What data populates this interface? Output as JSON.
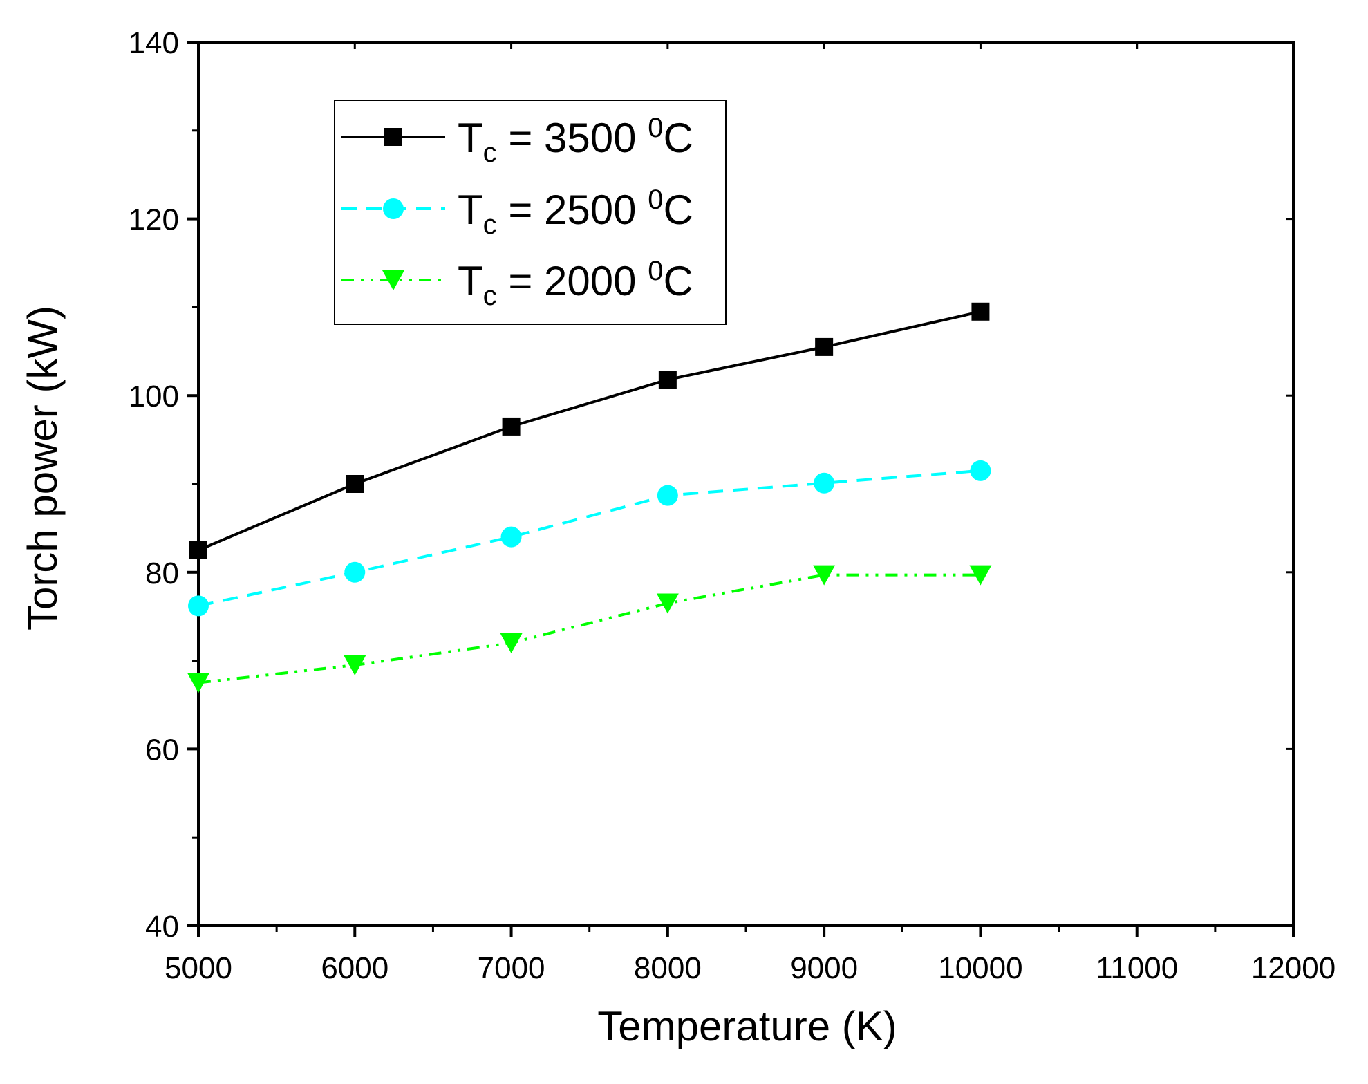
{
  "chart_data": {
    "type": "line",
    "title": "",
    "xlabel": "Temperature (K)",
    "ylabel": "Torch power (kW)",
    "xlim": [
      5000,
      12000
    ],
    "ylim": [
      40,
      140
    ],
    "xticks": [
      5000,
      6000,
      7000,
      8000,
      9000,
      10000,
      11000,
      12000
    ],
    "yticks": [
      40,
      60,
      80,
      100,
      120,
      140
    ],
    "xtick_labels": [
      "5000",
      "6000",
      "7000",
      "8000",
      "9000",
      "10000",
      "11000",
      "12000"
    ],
    "ytick_labels": [
      "40",
      "60",
      "80",
      "100",
      "120",
      "140"
    ],
    "grid": false,
    "legend_position": "top-left",
    "series": [
      {
        "name": "Tc = 3500 0C",
        "label_main": "T",
        "label_sub": "c",
        "label_mid": " = 3500 ",
        "label_sup": "0",
        "label_end": "C",
        "color": "#000000",
        "marker": "square",
        "dash": "solid",
        "x": [
          5000,
          6000,
          7000,
          8000,
          9000,
          10000
        ],
        "values": [
          82.5,
          90.0,
          96.5,
          101.8,
          105.5,
          109.5
        ]
      },
      {
        "name": "Tc = 2500 0C",
        "label_main": "T",
        "label_sub": "c",
        "label_mid": " = 2500 ",
        "label_sup": "0",
        "label_end": "C",
        "color": "#00FFFF",
        "marker": "circle",
        "dash": "dash",
        "x": [
          5000,
          6000,
          7000,
          8000,
          9000,
          10000
        ],
        "values": [
          76.2,
          80.0,
          84.0,
          88.7,
          90.1,
          91.5
        ]
      },
      {
        "name": "Tc = 2000 0C",
        "label_main": "T",
        "label_sub": "c",
        "label_mid": " = 2000 ",
        "label_sup": "0",
        "label_end": "C",
        "color": "#00FF00",
        "marker": "triangle-down",
        "dash": "dash-dot-dot",
        "x": [
          5000,
          6000,
          7000,
          8000,
          9000,
          10000
        ],
        "values": [
          67.5,
          69.5,
          72.0,
          76.5,
          79.7,
          79.7
        ]
      }
    ]
  }
}
